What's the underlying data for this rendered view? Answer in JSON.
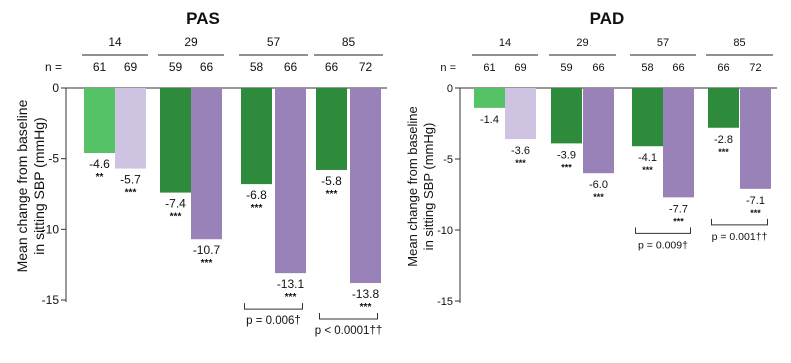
{
  "chart_data": [
    {
      "type": "bar",
      "title": "PAS",
      "ylabel_line1": "Mean change from baseline",
      "ylabel_line2": "in sitting SBP (mmHg)",
      "ylim": [
        -15,
        0
      ],
      "yticks": [
        0,
        -5,
        -10,
        -15
      ],
      "n_prefix": "n =",
      "groups": [
        {
          "time": "14",
          "n": [
            "61",
            "69"
          ],
          "values": [
            -4.6,
            -5.7
          ],
          "labels": [
            "-4.6",
            "-5.7"
          ],
          "sig": [
            "**",
            "***"
          ],
          "colors": [
            "#55c265",
            "#cfc3e2"
          ],
          "pvalue": ""
        },
        {
          "time": "29",
          "n": [
            "59",
            "66"
          ],
          "values": [
            -7.4,
            -10.7
          ],
          "labels": [
            "-7.4",
            "-10.7"
          ],
          "sig": [
            "***",
            "***"
          ],
          "colors": [
            "#2f8b3c",
            "#9882b8"
          ],
          "pvalue": ""
        },
        {
          "time": "57",
          "n": [
            "58",
            "66"
          ],
          "values": [
            -6.8,
            -13.1
          ],
          "labels": [
            "-6.8",
            "-13.1"
          ],
          "sig": [
            "***",
            "***"
          ],
          "colors": [
            "#2f8b3c",
            "#9882b8"
          ],
          "pvalue": "p = 0.006†"
        },
        {
          "time": "85",
          "n": [
            "66",
            "72"
          ],
          "values": [
            -5.8,
            -13.8
          ],
          "labels": [
            "-5.8",
            "-13.8"
          ],
          "sig": [
            "***",
            "***"
          ],
          "colors": [
            "#2f8b3c",
            "#9882b8"
          ],
          "pvalue": "p < 0.0001††"
        }
      ]
    },
    {
      "type": "bar",
      "title": "PAD",
      "ylabel_line1": "Mean change from baseline",
      "ylabel_line2": "in sitting SBP (mmHg)",
      "ylim": [
        -15,
        0
      ],
      "yticks": [
        0,
        -5,
        -10,
        -15
      ],
      "n_prefix": "n =",
      "groups": [
        {
          "time": "14",
          "n": [
            "61",
            "69"
          ],
          "values": [
            -1.4,
            -3.6
          ],
          "labels": [
            "-1.4",
            "-3.6"
          ],
          "sig": [
            "",
            "***"
          ],
          "colors": [
            "#55c265",
            "#cfc3e2"
          ],
          "pvalue": ""
        },
        {
          "time": "29",
          "n": [
            "59",
            "66"
          ],
          "values": [
            -3.9,
            -6.0
          ],
          "labels": [
            "-3.9",
            "-6.0"
          ],
          "sig": [
            "***",
            "***"
          ],
          "colors": [
            "#2f8b3c",
            "#9882b8"
          ],
          "pvalue": ""
        },
        {
          "time": "57",
          "n": [
            "58",
            "66"
          ],
          "values": [
            -4.1,
            -7.7
          ],
          "labels": [
            "-4.1",
            "-7.7"
          ],
          "sig": [
            "***",
            "***"
          ],
          "colors": [
            "#2f8b3c",
            "#9882b8"
          ],
          "pvalue": "p = 0.009†"
        },
        {
          "time": "85",
          "n": [
            "66",
            "72"
          ],
          "values": [
            -2.8,
            -7.1
          ],
          "labels": [
            "-2.8",
            "-7.1"
          ],
          "sig": [
            "***",
            "***"
          ],
          "colors": [
            "#2f8b3c",
            "#9882b8"
          ],
          "pvalue": "p = 0.001††"
        }
      ]
    }
  ]
}
